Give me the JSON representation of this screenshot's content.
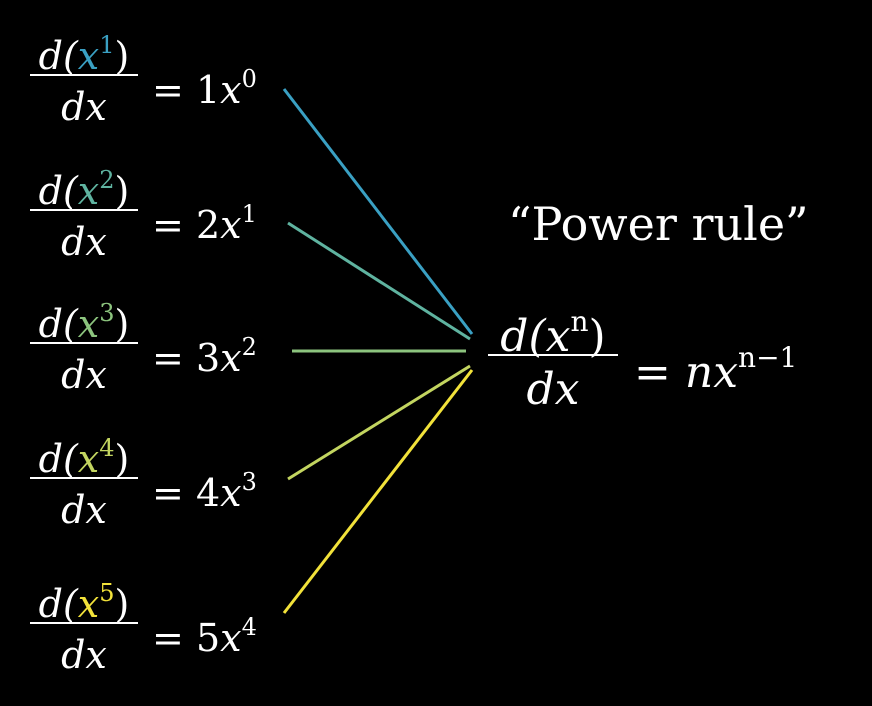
{
  "title": "“Power rule”",
  "equations": [
    {
      "num_pre": "d(",
      "base": "x",
      "power": "1",
      "num_post": ")",
      "den": "dx",
      "eq": "=",
      "coef": "1",
      "rhs_base": "x",
      "rhs_power": "0",
      "color": "#3aa0c3"
    },
    {
      "num_pre": "d(",
      "base": "x",
      "power": "2",
      "num_post": ")",
      "den": "dx",
      "eq": "=",
      "coef": "2",
      "rhs_base": "x",
      "rhs_power": "1",
      "color": "#5fb3a0"
    },
    {
      "num_pre": "d(",
      "base": "x",
      "power": "3",
      "num_post": ")",
      "den": "dx",
      "eq": "=",
      "coef": "3",
      "rhs_base": "x",
      "rhs_power": "2",
      "color": "#8cc47e"
    },
    {
      "num_pre": "d(",
      "base": "x",
      "power": "4",
      "num_post": ")",
      "den": "dx",
      "eq": "=",
      "coef": "4",
      "rhs_base": "x",
      "rhs_power": "3",
      "color": "#c3d560"
    },
    {
      "num_pre": "d(",
      "base": "x",
      "power": "5",
      "num_post": ")",
      "den": "dx",
      "eq": "=",
      "coef": "5",
      "rhs_base": "x",
      "rhs_power": "4",
      "color": "#f2e23a"
    }
  ],
  "general": {
    "num_pre": "d(",
    "base": "x",
    "power": "n",
    "num_post": ")",
    "den": "dx",
    "eq": "=",
    "rhs_coef": "n",
    "rhs_base": "x",
    "rhs_power": "n−1"
  },
  "colors": {
    "background": "#000000",
    "text": "#ffffff"
  }
}
